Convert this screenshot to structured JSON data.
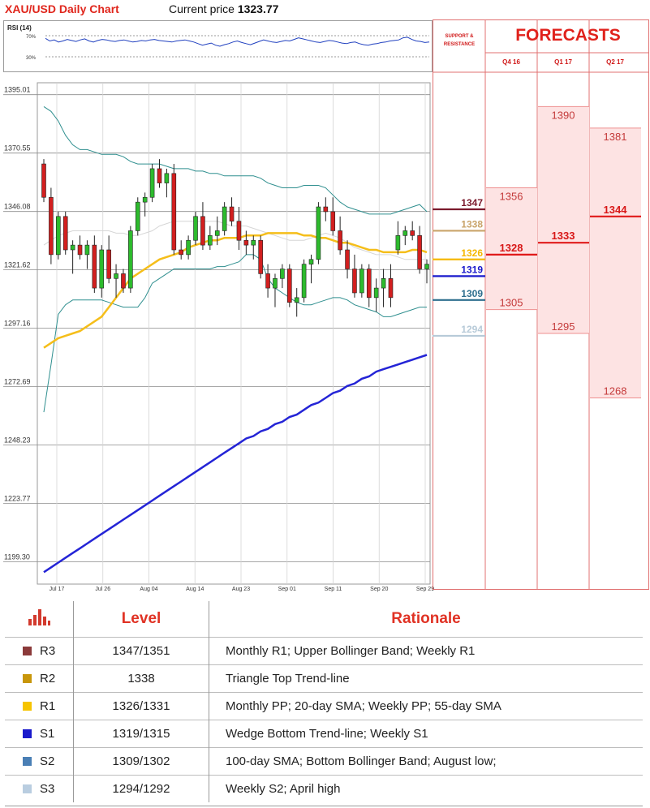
{
  "header": {
    "title": "XAU/USD Daily Chart",
    "price_label": "Current price",
    "price_value": "1323.77"
  },
  "rsi": {
    "label": "RSI (14)",
    "levels": [
      "70%",
      "30%"
    ],
    "values": [
      65,
      60,
      62,
      58,
      60,
      63,
      61,
      59,
      62,
      64,
      60,
      58,
      61,
      63,
      62,
      60,
      59,
      61,
      62,
      60,
      58,
      59,
      61,
      60,
      62,
      63,
      61,
      60,
      59,
      58,
      60,
      61,
      62,
      60,
      58,
      55,
      52,
      54,
      56,
      52,
      50,
      53,
      55,
      58,
      60,
      57,
      55,
      53,
      56,
      59,
      62,
      60,
      58,
      57,
      59,
      61,
      60,
      63,
      66,
      64,
      62,
      60,
      58,
      57,
      59,
      61,
      60,
      58,
      56,
      55,
      57,
      58,
      55,
      53,
      52,
      54,
      55,
      57,
      58,
      60,
      61,
      62,
      66,
      67,
      63,
      60,
      59,
      57,
      58
    ]
  },
  "chart_data": {
    "type": "candlestick",
    "title": "XAU/USD Daily Chart",
    "ylim": [
      1190.0,
      1400.0
    ],
    "y_ticks": [
      "1395.01",
      "1370.55",
      "1346.08",
      "1321.62",
      "1297.16",
      "1272.69",
      "1248.23",
      "1223.77",
      "1199.30"
    ],
    "x_ticks": [
      "Jul 17",
      "Jul 26",
      "Aug 04",
      "Aug 14",
      "Aug 23",
      "Sep 01",
      "Sep 11",
      "Sep 20",
      "Sep 29"
    ],
    "candles": [
      [
        1366,
        1368,
        1350,
        1352
      ],
      [
        1352,
        1356,
        1324,
        1328
      ],
      [
        1328,
        1346,
        1326,
        1344
      ],
      [
        1344,
        1346,
        1328,
        1330
      ],
      [
        1330,
        1334,
        1320,
        1332
      ],
      [
        1332,
        1336,
        1326,
        1328
      ],
      [
        1328,
        1334,
        1322,
        1332
      ],
      [
        1332,
        1336,
        1312,
        1314
      ],
      [
        1314,
        1332,
        1310,
        1330
      ],
      [
        1330,
        1336,
        1316,
        1318
      ],
      [
        1318,
        1324,
        1310,
        1320
      ],
      [
        1320,
        1322,
        1312,
        1314
      ],
      [
        1314,
        1340,
        1312,
        1338
      ],
      [
        1338,
        1352,
        1336,
        1350
      ],
      [
        1350,
        1354,
        1344,
        1352
      ],
      [
        1352,
        1366,
        1350,
        1364
      ],
      [
        1364,
        1368,
        1356,
        1358
      ],
      [
        1358,
        1364,
        1352,
        1362
      ],
      [
        1362,
        1366,
        1328,
        1330
      ],
      [
        1330,
        1334,
        1326,
        1328
      ],
      [
        1328,
        1336,
        1326,
        1334
      ],
      [
        1334,
        1346,
        1332,
        1344
      ],
      [
        1344,
        1350,
        1330,
        1332
      ],
      [
        1332,
        1340,
        1330,
        1336
      ],
      [
        1336,
        1344,
        1332,
        1338
      ],
      [
        1338,
        1350,
        1336,
        1348
      ],
      [
        1348,
        1352,
        1340,
        1342
      ],
      [
        1342,
        1348,
        1330,
        1334
      ],
      [
        1334,
        1338,
        1328,
        1332
      ],
      [
        1332,
        1336,
        1326,
        1334
      ],
      [
        1334,
        1336,
        1318,
        1320
      ],
      [
        1320,
        1324,
        1310,
        1314
      ],
      [
        1314,
        1320,
        1306,
        1318
      ],
      [
        1318,
        1324,
        1314,
        1322
      ],
      [
        1322,
        1324,
        1306,
        1308
      ],
      [
        1308,
        1314,
        1302,
        1310
      ],
      [
        1310,
        1326,
        1308,
        1324
      ],
      [
        1324,
        1328,
        1316,
        1326
      ],
      [
        1326,
        1350,
        1324,
        1348
      ],
      [
        1348,
        1352,
        1342,
        1346
      ],
      [
        1346,
        1352,
        1336,
        1338
      ],
      [
        1338,
        1344,
        1328,
        1330
      ],
      [
        1330,
        1334,
        1318,
        1322
      ],
      [
        1322,
        1328,
        1310,
        1312
      ],
      [
        1312,
        1324,
        1310,
        1322
      ],
      [
        1322,
        1324,
        1306,
        1310
      ],
      [
        1310,
        1318,
        1304,
        1314
      ],
      [
        1314,
        1322,
        1306,
        1318
      ],
      [
        1318,
        1324,
        1306,
        1310
      ],
      [
        1330,
        1342,
        1328,
        1336
      ],
      [
        1336,
        1340,
        1332,
        1338
      ],
      [
        1338,
        1342,
        1334,
        1336
      ],
      [
        1336,
        1340,
        1320,
        1322
      ],
      [
        1322,
        1326,
        1316,
        1324
      ]
    ],
    "bollinger_upper": [
      1390,
      1388,
      1384,
      1378,
      1374,
      1372,
      1372,
      1371,
      1370,
      1370,
      1370,
      1369,
      1367,
      1366,
      1366,
      1366,
      1366,
      1365,
      1364,
      1364,
      1364,
      1363,
      1363,
      1362,
      1362,
      1361,
      1361,
      1361,
      1361,
      1361,
      1360,
      1358,
      1357,
      1356,
      1356,
      1356,
      1357,
      1357,
      1357,
      1356,
      1353,
      1350,
      1348,
      1347,
      1346,
      1345,
      1345,
      1345,
      1345,
      1346,
      1347,
      1348,
      1349,
      1346
    ],
    "bollinger_lower": [
      1262,
      1282,
      1303,
      1307,
      1309,
      1309,
      1309,
      1309,
      1309,
      1308,
      1307,
      1306,
      1306,
      1306,
      1310,
      1316,
      1318,
      1320,
      1322,
      1322,
      1322,
      1322,
      1322,
      1322,
      1323,
      1323,
      1324,
      1325,
      1328,
      1328,
      1326,
      1318,
      1314,
      1312,
      1310,
      1308,
      1307,
      1307,
      1308,
      1309,
      1310,
      1310,
      1309,
      1307,
      1306,
      1305,
      1304,
      1302,
      1302,
      1303,
      1304,
      1305,
      1306,
      1306
    ],
    "bollinger_mid": [
      1332,
      1334,
      1336,
      1337,
      1338,
      1338,
      1338,
      1338,
      1338,
      1338,
      1337,
      1337,
      1336,
      1336,
      1337,
      1338,
      1340,
      1341,
      1342,
      1342,
      1342,
      1342,
      1342,
      1342,
      1342,
      1341,
      1340,
      1340,
      1340,
      1339,
      1338,
      1337,
      1336,
      1335,
      1334,
      1334,
      1334,
      1335,
      1336,
      1337,
      1336,
      1335,
      1333,
      1331,
      1330,
      1329,
      1328,
      1328,
      1328,
      1327,
      1326,
      1326,
      1326,
      1326
    ],
    "sma_55": [
      1289,
      1291,
      1293,
      1294,
      1295,
      1296,
      1298,
      1300,
      1302,
      1306,
      1310,
      1314,
      1318,
      1320,
      1322,
      1324,
      1326,
      1327,
      1328,
      1329,
      1331,
      1332,
      1333,
      1334,
      1334,
      1335,
      1335,
      1335,
      1336,
      1336,
      1336,
      1337,
      1337,
      1337,
      1337,
      1337,
      1336,
      1336,
      1335,
      1335,
      1334,
      1333,
      1333,
      1332,
      1331,
      1330,
      1330,
      1329,
      1329,
      1329,
      1329,
      1330,
      1330,
      1329
    ],
    "sma_100": [
      1195,
      1197,
      1199,
      1201,
      1203,
      1205,
      1207,
      1209,
      1211,
      1213,
      1215,
      1217,
      1219,
      1221,
      1223,
      1225,
      1227,
      1229,
      1231,
      1233,
      1235,
      1237,
      1239,
      1241,
      1243,
      1245,
      1247,
      1249,
      1251,
      1252,
      1254,
      1255,
      1257,
      1258,
      1260,
      1261,
      1263,
      1265,
      1266,
      1268,
      1270,
      1271,
      1273,
      1274,
      1276,
      1277,
      1279,
      1280,
      1281,
      1282,
      1283,
      1284,
      1285,
      1286
    ]
  },
  "support_resistance": {
    "header": [
      "SUPPORT &",
      "RESISTANCE"
    ],
    "levels": [
      {
        "value": "1347",
        "color": "#7b1a2c"
      },
      {
        "value": "1338",
        "color": "#c9a46a"
      },
      {
        "value": "1326",
        "color": "#f5b800"
      },
      {
        "value": "1319",
        "color": "#1a1acc"
      },
      {
        "value": "1309",
        "color": "#2e6f8e"
      },
      {
        "value": "1294",
        "color": "#b7cad8"
      }
    ]
  },
  "forecasts": {
    "title": "FORECASTS",
    "quarters": [
      {
        "label": "Q4 16",
        "high": "1356",
        "mid": "1328",
        "low": "1305"
      },
      {
        "label": "Q1 17",
        "high": "1390",
        "mid": "1333",
        "low": "1295"
      },
      {
        "label": "Q2 17",
        "high": "1381",
        "mid": "1344",
        "low": "1268"
      }
    ]
  },
  "table": {
    "headers": {
      "level": "Level",
      "rationale": "Rationale"
    },
    "header_icon": "bar-chart-icon",
    "rows": [
      {
        "label": "R3",
        "color": "#8b3a3a",
        "level": "1347/1351",
        "rationale": "Monthly R1; Upper Bollinger Band; Weekly R1"
      },
      {
        "label": "R2",
        "color": "#c8960a",
        "level": "1338",
        "rationale": "Triangle Top Trend-line"
      },
      {
        "label": "R1",
        "color": "#f6c400",
        "level": "1326/1331",
        "rationale": "Monthly PP; 20-day SMA; Weekly PP; 55-day SMA"
      },
      {
        "label": "S1",
        "color": "#1a1acc",
        "level": "1319/1315",
        "rationale": "Wedge Bottom Trend-line;  Weekly S1"
      },
      {
        "label": "S2",
        "color": "#4a7fb5",
        "level": "1309/1302",
        "rationale": "100-day SMA; Bottom Bollinger Band;  August low;"
      },
      {
        "label": "S3",
        "color": "#b9cde0",
        "level": "1294/1292",
        "rationale": "Weekly S2;  April high"
      }
    ]
  }
}
